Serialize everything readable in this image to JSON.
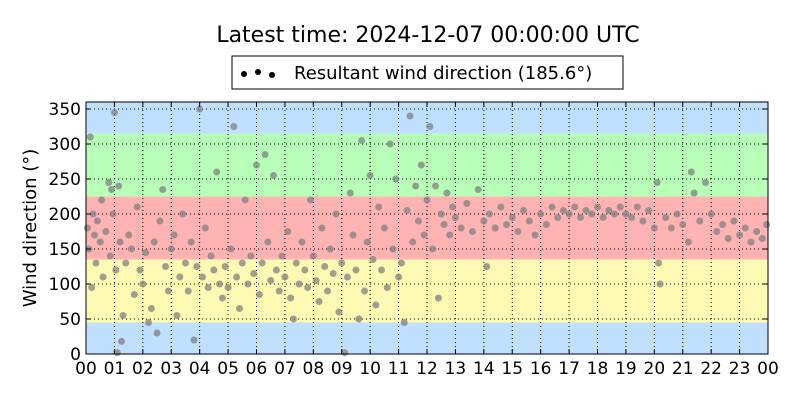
{
  "chart_data": {
    "type": "scatter",
    "title": "Latest time: 2024-12-07 00:00:00 UTC",
    "ylabel": "Wind direction (°)",
    "xlabel": "",
    "legend": {
      "label": "Resultant wind direction (185.6°)",
      "placement": "top-center, above plot"
    },
    "xlim": [
      0,
      24
    ],
    "ylim": [
      0,
      360
    ],
    "x_ticks": [
      "00",
      "01",
      "02",
      "03",
      "04",
      "05",
      "06",
      "07",
      "08",
      "09",
      "10",
      "11",
      "12",
      "13",
      "14",
      "15",
      "16",
      "17",
      "18",
      "19",
      "20",
      "21",
      "22",
      "23",
      "00"
    ],
    "y_ticks": [
      0,
      50,
      100,
      150,
      200,
      250,
      300,
      350
    ],
    "grid": true,
    "bands": [
      {
        "from": 0,
        "to": 45,
        "color": "#bfe0ff"
      },
      {
        "from": 45,
        "to": 135,
        "color": "#fffab3"
      },
      {
        "from": 135,
        "to": 225,
        "color": "#ffb3b3"
      },
      {
        "from": 225,
        "to": 315,
        "color": "#b8ffb8"
      },
      {
        "from": 315,
        "to": 360,
        "color": "#bfe0ff"
      }
    ],
    "point_color": "#808080",
    "points": [
      [
        0.05,
        180
      ],
      [
        0.1,
        150
      ],
      [
        0.15,
        310
      ],
      [
        0.2,
        95
      ],
      [
        0.25,
        200
      ],
      [
        0.3,
        170
      ],
      [
        0.35,
        130
      ],
      [
        0.4,
        190
      ],
      [
        0.5,
        160
      ],
      [
        0.55,
        220
      ],
      [
        0.6,
        110
      ],
      [
        0.7,
        175
      ],
      [
        0.8,
        245
      ],
      [
        0.85,
        140
      ],
      [
        0.9,
        235
      ],
      [
        0.95,
        200
      ],
      [
        1.0,
        345
      ],
      [
        1.05,
        120
      ],
      [
        1.1,
        2
      ],
      [
        1.15,
        240
      ],
      [
        1.2,
        160
      ],
      [
        1.25,
        18
      ],
      [
        1.3,
        55
      ],
      [
        1.4,
        130
      ],
      [
        1.5,
        170
      ],
      [
        1.6,
        150
      ],
      [
        1.7,
        85
      ],
      [
        1.8,
        210
      ],
      [
        1.9,
        120
      ],
      [
        2.0,
        100
      ],
      [
        2.1,
        145
      ],
      [
        2.2,
        45
      ],
      [
        2.3,
        65
      ],
      [
        2.4,
        160
      ],
      [
        2.5,
        30
      ],
      [
        2.6,
        190
      ],
      [
        2.7,
        235
      ],
      [
        2.8,
        125
      ],
      [
        2.9,
        90
      ],
      [
        3.0,
        150
      ],
      [
        3.1,
        170
      ],
      [
        3.2,
        55
      ],
      [
        3.3,
        110
      ],
      [
        3.4,
        200
      ],
      [
        3.5,
        130
      ],
      [
        3.6,
        90
      ],
      [
        3.7,
        160
      ],
      [
        3.8,
        20
      ],
      [
        3.9,
        125
      ],
      [
        4.0,
        350
      ],
      [
        4.1,
        110
      ],
      [
        4.2,
        180
      ],
      [
        4.3,
        95
      ],
      [
        4.4,
        140
      ],
      [
        4.5,
        120
      ],
      [
        4.6,
        260
      ],
      [
        4.7,
        100
      ],
      [
        4.8,
        80
      ],
      [
        4.9,
        125
      ],
      [
        5.0,
        95
      ],
      [
        5.1,
        150
      ],
      [
        5.2,
        325
      ],
      [
        5.3,
        110
      ],
      [
        5.4,
        65
      ],
      [
        5.5,
        130
      ],
      [
        5.6,
        220
      ],
      [
        5.7,
        100
      ],
      [
        5.8,
        140
      ],
      [
        5.9,
        115
      ],
      [
        6.0,
        270
      ],
      [
        6.1,
        85
      ],
      [
        6.2,
        130
      ],
      [
        6.3,
        285
      ],
      [
        6.4,
        160
      ],
      [
        6.5,
        105
      ],
      [
        6.6,
        255
      ],
      [
        6.7,
        120
      ],
      [
        6.8,
        90
      ],
      [
        6.9,
        140
      ],
      [
        7.0,
        110
      ],
      [
        7.1,
        175
      ],
      [
        7.2,
        80
      ],
      [
        7.3,
        50
      ],
      [
        7.4,
        130
      ],
      [
        7.5,
        100
      ],
      [
        7.6,
        160
      ],
      [
        7.7,
        120
      ],
      [
        7.8,
        95
      ],
      [
        7.9,
        220
      ],
      [
        8.0,
        140
      ],
      [
        8.1,
        105
      ],
      [
        8.2,
        75
      ],
      [
        8.3,
        180
      ],
      [
        8.4,
        125
      ],
      [
        8.5,
        90
      ],
      [
        8.6,
        150
      ],
      [
        8.7,
        115
      ],
      [
        8.8,
        200
      ],
      [
        8.9,
        60
      ],
      [
        9.0,
        130
      ],
      [
        9.1,
        2
      ],
      [
        9.2,
        110
      ],
      [
        9.3,
        230
      ],
      [
        9.4,
        170
      ],
      [
        9.5,
        120
      ],
      [
        9.6,
        50
      ],
      [
        9.7,
        305
      ],
      [
        9.8,
        90
      ],
      [
        9.9,
        160
      ],
      [
        10.0,
        255
      ],
      [
        10.1,
        135
      ],
      [
        10.2,
        70
      ],
      [
        10.3,
        210
      ],
      [
        10.4,
        120
      ],
      [
        10.5,
        180
      ],
      [
        10.6,
        95
      ],
      [
        10.7,
        300
      ],
      [
        10.8,
        150
      ],
      [
        10.9,
        250
      ],
      [
        11.0,
        110
      ],
      [
        11.1,
        130
      ],
      [
        11.2,
        45
      ],
      [
        11.3,
        205
      ],
      [
        11.4,
        340
      ],
      [
        11.5,
        160
      ],
      [
        11.6,
        240
      ],
      [
        11.7,
        190
      ],
      [
        11.8,
        270
      ],
      [
        11.9,
        170
      ],
      [
        12.0,
        220
      ],
      [
        12.1,
        325
      ],
      [
        12.2,
        150
      ],
      [
        12.3,
        240
      ],
      [
        12.4,
        80
      ],
      [
        12.5,
        200
      ],
      [
        12.6,
        185
      ],
      [
        12.7,
        230
      ],
      [
        12.8,
        170
      ],
      [
        12.9,
        210
      ],
      [
        13.0,
        195
      ],
      [
        13.2,
        180
      ],
      [
        13.4,
        215
      ],
      [
        13.6,
        175
      ],
      [
        13.8,
        235
      ],
      [
        14.0,
        190
      ],
      [
        14.1,
        125
      ],
      [
        14.2,
        200
      ],
      [
        14.4,
        180
      ],
      [
        14.6,
        210
      ],
      [
        14.8,
        185
      ],
      [
        15.0,
        195
      ],
      [
        15.2,
        175
      ],
      [
        15.4,
        205
      ],
      [
        15.6,
        190
      ],
      [
        15.8,
        170
      ],
      [
        16.0,
        200
      ],
      [
        16.2,
        185
      ],
      [
        16.4,
        210
      ],
      [
        16.6,
        195
      ],
      [
        16.8,
        205
      ],
      [
        17.0,
        200
      ],
      [
        17.2,
        210
      ],
      [
        17.4,
        195
      ],
      [
        17.6,
        205
      ],
      [
        17.8,
        200
      ],
      [
        18.0,
        210
      ],
      [
        18.2,
        195
      ],
      [
        18.4,
        205
      ],
      [
        18.6,
        200
      ],
      [
        18.8,
        210
      ],
      [
        19.0,
        200
      ],
      [
        19.2,
        195
      ],
      [
        19.4,
        210
      ],
      [
        19.6,
        190
      ],
      [
        19.8,
        205
      ],
      [
        20.0,
        180
      ],
      [
        20.1,
        245
      ],
      [
        20.15,
        130
      ],
      [
        20.2,
        100
      ],
      [
        20.4,
        195
      ],
      [
        20.6,
        180
      ],
      [
        20.8,
        200
      ],
      [
        21.0,
        185
      ],
      [
        21.2,
        160
      ],
      [
        21.3,
        260
      ],
      [
        21.4,
        230
      ],
      [
        21.6,
        190
      ],
      [
        21.8,
        245
      ],
      [
        22.0,
        200
      ],
      [
        22.2,
        175
      ],
      [
        22.4,
        185
      ],
      [
        22.6,
        165
      ],
      [
        22.8,
        190
      ],
      [
        23.0,
        170
      ],
      [
        23.2,
        180
      ],
      [
        23.4,
        160
      ],
      [
        23.6,
        175
      ],
      [
        23.8,
        165
      ],
      [
        23.95,
        185
      ]
    ]
  }
}
